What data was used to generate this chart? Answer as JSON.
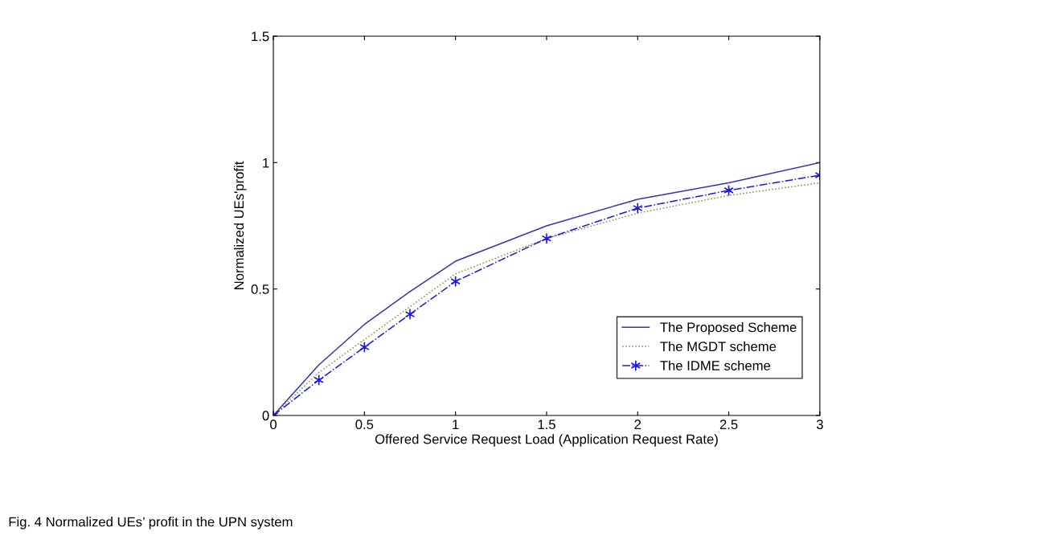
{
  "chart_data": {
    "type": "line",
    "xlabel": "Offered Service Request Load (Application Request Rate)",
    "ylabel": "Normalized UEs'profit",
    "x": [
      0,
      0.25,
      0.5,
      0.75,
      1,
      1.5,
      2,
      2.5,
      3
    ],
    "series": [
      {
        "name": "The Proposed Scheme",
        "color": "#3434b4",
        "line_style": "solid",
        "marker": "none",
        "values": [
          0,
          0.2,
          0.36,
          0.49,
          0.61,
          0.75,
          0.855,
          0.92,
          1.0
        ]
      },
      {
        "name": "The MGDT scheme",
        "color": "#8a8a40",
        "line_style": "dotted",
        "marker": "none",
        "values": [
          0,
          0.17,
          0.3,
          0.43,
          0.56,
          0.7,
          0.8,
          0.87,
          0.92
        ]
      },
      {
        "name": "The IDME scheme",
        "color": "#1a1ae0",
        "line_style": "dashdot",
        "marker": "cross",
        "values": [
          0,
          0.14,
          0.27,
          0.4,
          0.53,
          0.7,
          0.82,
          0.89,
          0.95
        ]
      }
    ],
    "xlim": [
      0,
      3
    ],
    "ylim": [
      0,
      1.5
    ],
    "xticks": [
      0,
      0.5,
      1,
      1.5,
      2,
      2.5,
      3
    ],
    "yticks": [
      0,
      0.5,
      1,
      1.5
    ],
    "grid": false,
    "legend": "bottom right",
    "annotations": [
      "Fig. 4 Normalized UEs’ profit in the UPN system"
    ]
  }
}
